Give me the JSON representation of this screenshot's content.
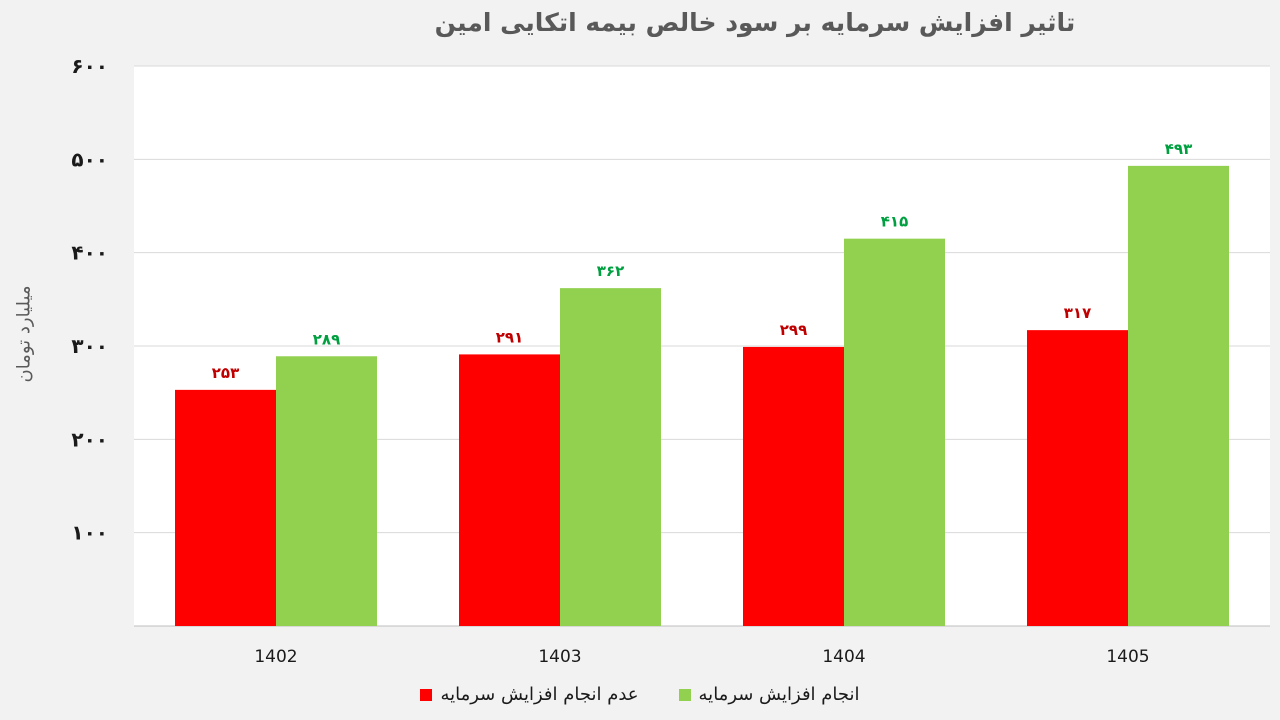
{
  "chart_data": {
    "type": "bar",
    "title": "تاثیر افزایش سرمایه بر سود خالص  بیمه اتکایی امین",
    "ylabel": "میلیارد تومان",
    "xlabel": "",
    "categories": [
      "1402",
      "1403",
      "1404",
      "1405"
    ],
    "ylim": [
      0,
      600
    ],
    "yticks": [
      100,
      200,
      300,
      400,
      500,
      600
    ],
    "ytick_labels": [
      "۱۰۰",
      "۲۰۰",
      "۳۰۰",
      "۴۰۰",
      "۵۰۰",
      "۶۰۰"
    ],
    "grid": true,
    "legend_position": "bottom",
    "series": [
      {
        "name": "عدم انجام افزایش سرمایه",
        "color": "#ff0000",
        "label_color": "#c00000",
        "values": [
          253,
          291,
          299,
          317
        ],
        "labels": [
          "۲۵۳",
          "۲۹۱",
          "۲۹۹",
          "۳۱۷"
        ]
      },
      {
        "name": "انجام افزایش سرمایه",
        "color": "#92d050",
        "label_color": "#00a040",
        "values": [
          289,
          362,
          415,
          493
        ],
        "labels": [
          "۲۸۹",
          "۳۶۲",
          "۴۱۵",
          "۴۹۳"
        ]
      }
    ]
  }
}
